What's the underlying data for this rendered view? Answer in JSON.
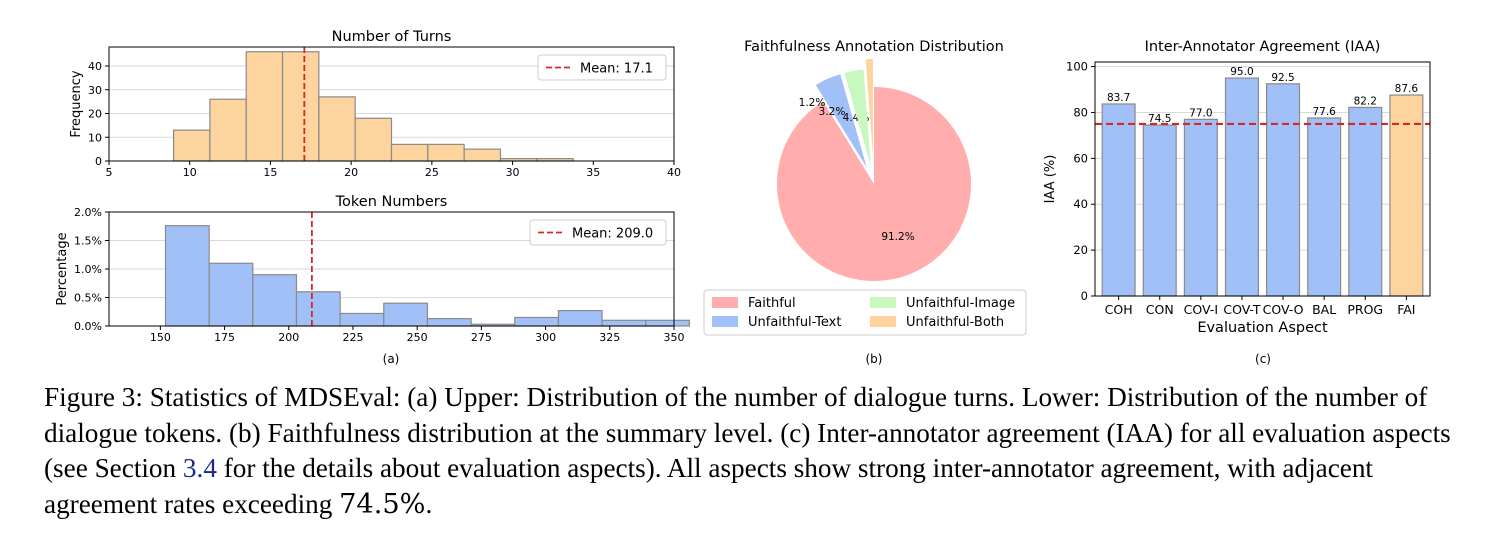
{
  "colors": {
    "orange_fill": "#fdd49e",
    "blue_fill": "#a1c0f8",
    "pink_fill": "#ffadad",
    "green_fill": "#c8f7c0",
    "bar_edge": "#8a8a8a",
    "mean_line": "#d62728",
    "link": "#1a2a8c"
  },
  "chart_data": [
    {
      "id": "turns",
      "type": "histogram",
      "title": "Number of Turns",
      "xlabel": "",
      "ylabel": "Frequency",
      "xlim": [
        5,
        40
      ],
      "ylim": [
        0,
        48
      ],
      "xticks": [
        5,
        10,
        15,
        20,
        25,
        30,
        35,
        40
      ],
      "xtick_labels": [
        "5",
        "10",
        "15",
        "20",
        "25",
        "30",
        "35",
        "40"
      ],
      "yticks": [
        0,
        10,
        20,
        30,
        40
      ],
      "ytick_labels": [
        "0",
        "10",
        "20",
        "30",
        "40"
      ],
      "bin_edges": [
        9,
        11.25,
        13.5,
        15.75,
        18,
        20.25,
        22.5,
        24.75,
        27,
        29.25,
        31.5,
        33.75
      ],
      "counts": [
        13,
        26,
        46,
        46,
        27,
        18,
        7,
        7,
        5,
        1,
        1
      ],
      "mean": 17.1,
      "legend_label": "Mean: 17.1",
      "legend_position": "top-right",
      "grid": "y"
    },
    {
      "id": "tokens",
      "type": "histogram",
      "title": "Token Numbers",
      "xlabel": "",
      "ylabel": "Percentage",
      "xlim": [
        130,
        350
      ],
      "ylim": [
        0,
        0.02
      ],
      "xticks": [
        150,
        175,
        200,
        225,
        250,
        275,
        300,
        325,
        350
      ],
      "xtick_labels": [
        "150",
        "175",
        "200",
        "225",
        "250",
        "275",
        "300",
        "325",
        "350"
      ],
      "yticks": [
        0,
        0.005,
        0.01,
        0.015,
        0.02
      ],
      "ytick_labels": [
        "0.0%",
        "0.5%",
        "1.0%",
        "1.5%",
        "2.0%"
      ],
      "bin_edges": [
        152,
        169,
        186,
        203,
        220,
        237,
        254,
        271,
        288,
        305,
        322,
        339,
        356
      ],
      "counts": [
        0.0176,
        0.011,
        0.009,
        0.006,
        0.0022,
        0.004,
        0.0013,
        0.0003,
        0.0015,
        0.0027,
        0.001,
        0.001
      ],
      "mean": 209.0,
      "legend_label": "Mean: 209.0",
      "legend_position": "top-right",
      "grid": "y",
      "sublabel": "(a)"
    },
    {
      "id": "faith",
      "type": "pie",
      "title": "Faithfulness Annotation Distribution",
      "slices": [
        {
          "label": "Faithful",
          "value": 91.2,
          "pct_label": "91.2%",
          "explode": false
        },
        {
          "label": "Unfaithful-Text",
          "value": 4.4,
          "pct_label": "4.4%",
          "explode": true
        },
        {
          "label": "Unfaithful-Image",
          "value": 3.2,
          "pct_label": "3.2%",
          "explode": true
        },
        {
          "label": "Unfaithful-Both",
          "value": 1.2,
          "pct_label": "1.2%",
          "explode": true
        }
      ],
      "legend": [
        "Faithful",
        "Unfaithful-Image",
        "Unfaithful-Text",
        "Unfaithful-Both"
      ],
      "legend_position": "bottom",
      "sublabel": "(b)"
    },
    {
      "id": "iaa",
      "type": "bar",
      "title": "Inter-Annotator Agreement (IAA)",
      "xlabel": "Evaluation Aspect",
      "ylabel": "IAA (%)",
      "categories": [
        "COH",
        "CON",
        "COV-I",
        "COV-T",
        "COV-O",
        "BAL",
        "PROG",
        "FAI"
      ],
      "values": [
        83.7,
        74.5,
        77.0,
        95.0,
        92.5,
        77.6,
        82.2,
        87.6
      ],
      "value_labels": [
        "83.7",
        "74.5",
        "77.0",
        "95.0",
        "92.5",
        "77.6",
        "82.2",
        "87.6"
      ],
      "ylim": [
        0,
        102
      ],
      "yticks": [
        0,
        20,
        40,
        60,
        80,
        100
      ],
      "ytick_labels": [
        "0",
        "20",
        "40",
        "60",
        "80",
        "100"
      ],
      "threshold": 75,
      "grid": "y",
      "sublabel": "(c)"
    }
  ],
  "caption": {
    "part1": "Figure 3: Statistics of MDSEval: (a) Upper: Distribution of the number of dialogue turns. Lower: Distribution of the number of dialogue tokens. (b) Faithfulness distribution at the summary level. (c) Inter-annotator agreement (IAA) for all evaluation aspects (see Section ",
    "ref": "3.4",
    "part2": " for the details about evaluation aspects). All aspects show strong inter-annotator agreement, with adjacent agreement rates exceeding ",
    "math": "74.5%",
    "part3": "."
  }
}
